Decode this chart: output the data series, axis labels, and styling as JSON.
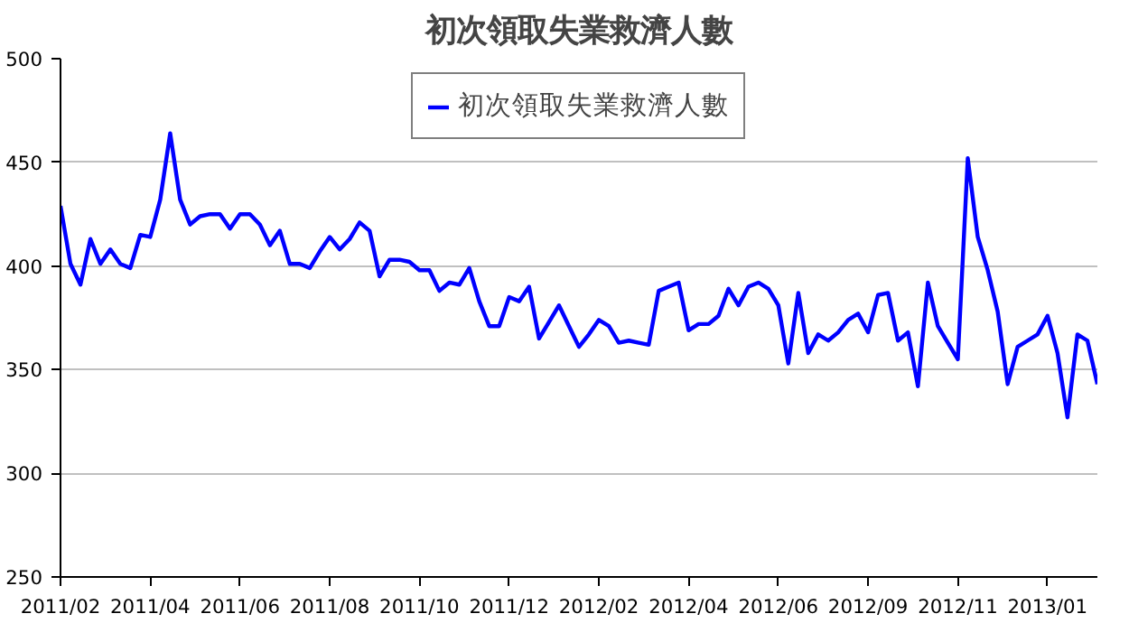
{
  "chart_data": {
    "type": "line",
    "title": "初次領取失業救濟人數",
    "categories": [
      "2011/02",
      null,
      null,
      null,
      null,
      null,
      null,
      null,
      null,
      "2011/04",
      null,
      null,
      null,
      null,
      null,
      null,
      null,
      null,
      "2011/06",
      null,
      null,
      null,
      null,
      null,
      null,
      null,
      null,
      "2011/08",
      null,
      null,
      null,
      null,
      null,
      null,
      null,
      null,
      "2011/10",
      null,
      null,
      null,
      null,
      null,
      null,
      null,
      null,
      "2011/12",
      null,
      null,
      null,
      null,
      null,
      null,
      null,
      null,
      "2012/02",
      null,
      null,
      null,
      null,
      null,
      null,
      null,
      null,
      "2012/04",
      null,
      null,
      null,
      null,
      null,
      null,
      null,
      null,
      "2012/06",
      null,
      null,
      null,
      null,
      null,
      null,
      null,
      null,
      "2012/09",
      null,
      null,
      null,
      null,
      null,
      null,
      null,
      null,
      "2012/11",
      null,
      null,
      null,
      null,
      null,
      null,
      null,
      null,
      "2013/01",
      null,
      null,
      null,
      null,
      null
    ],
    "series": [
      {
        "name": "初次領取失業救濟人數",
        "color": "#0000ff",
        "values": [
          429,
          401,
          391,
          413,
          401,
          408,
          401,
          399,
          415,
          414,
          432,
          464,
          432,
          420,
          424,
          425,
          425,
          418,
          425,
          425,
          420,
          410,
          417,
          401,
          401,
          399,
          407,
          414,
          408,
          413,
          421,
          417,
          395,
          403,
          403,
          402,
          398,
          398,
          388,
          392,
          391,
          399,
          383,
          371,
          371,
          385,
          383,
          390,
          365,
          373,
          381,
          371,
          361,
          367,
          374,
          371,
          363,
          364,
          363,
          362,
          388,
          390,
          392,
          369,
          372,
          372,
          376,
          389,
          381,
          390,
          392,
          389,
          381,
          353,
          387,
          358,
          367,
          364,
          368,
          374,
          377,
          368,
          386,
          387,
          364,
          368,
          342,
          392,
          371,
          363,
          355,
          452,
          414,
          398,
          378,
          343,
          361,
          364,
          367,
          376,
          358,
          327,
          367,
          364,
          343
        ]
      }
    ],
    "ylim": [
      250,
      500
    ],
    "yticks": [
      250,
      300,
      350,
      400,
      450,
      500
    ],
    "grid": "y",
    "legend": "top",
    "marker": "none",
    "line_style": "solid"
  }
}
